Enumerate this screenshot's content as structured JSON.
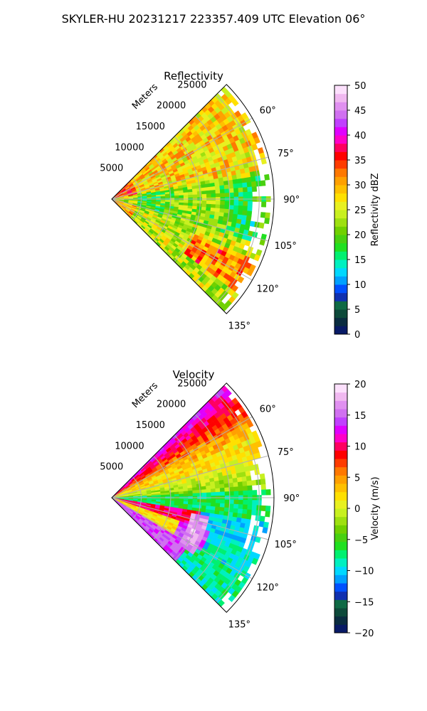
{
  "figure": {
    "suptitle": "SKYLER-HU  20231217  223357.409 UTC Elevation 06°"
  },
  "chart_data": [
    {
      "type": "heatmap",
      "projection": "polar-sector",
      "title": "Reflectivity",
      "range_label": "Meters",
      "range_ticks": [
        "5000",
        "10000",
        "15000",
        "20000",
        "25000"
      ],
      "azimuth_ticks": [
        "60°",
        "75°",
        "90°",
        "105°",
        "120°",
        "135°"
      ],
      "azimuth_range_deg": [
        45,
        135
      ],
      "range_max_m": 27500,
      "grid": true,
      "colorbar": {
        "label": "Reflectivity dBZ",
        "vmin": 0,
        "vmax": 50,
        "ticks": [
          "0",
          "5",
          "10",
          "15",
          "20",
          "25",
          "30",
          "35",
          "40",
          "45",
          "50"
        ],
        "colors": [
          "#081a66",
          "#0a2c40",
          "#0d4a3a",
          "#0f6a45",
          "#1030b0",
          "#0050ff",
          "#00a0ff",
          "#00d8ff",
          "#00f0c0",
          "#00f070",
          "#20e020",
          "#48d010",
          "#70d000",
          "#9ee010",
          "#c8f020",
          "#e8f020",
          "#ffe000",
          "#ffc000",
          "#ffa000",
          "#ff7800",
          "#ff3c00",
          "#ff0000",
          "#ff0060",
          "#ff00c8",
          "#e000ff",
          "#c040ff",
          "#d070f0",
          "#e090f0",
          "#f0b8f0",
          "#fce0fc"
        ]
      },
      "field_description_points": [
        {
          "az": 95,
          "r": 0.85,
          "level": 20
        },
        {
          "az": 65,
          "r": 0.8,
          "level": 28
        },
        {
          "az": 125,
          "r": 0.75,
          "level": 34
        },
        {
          "az": 115,
          "r": 0.9,
          "level": 32
        }
      ]
    },
    {
      "type": "heatmap",
      "projection": "polar-sector",
      "title": "Velocity",
      "range_label": "Meters",
      "range_ticks": [
        "5000",
        "10000",
        "15000",
        "20000",
        "25000"
      ],
      "azimuth_ticks": [
        "60°",
        "75°",
        "90°",
        "105°",
        "120°",
        "135°"
      ],
      "azimuth_range_deg": [
        45,
        135
      ],
      "range_max_m": 27500,
      "grid": true,
      "colorbar": {
        "label": "Velocity (m/s)",
        "vmin": -20,
        "vmax": 20,
        "ticks": [
          "−20",
          "−15",
          "−10",
          "−5",
          "0",
          "5",
          "10",
          "15",
          "20"
        ],
        "colors": [
          "#081a66",
          "#0a2c40",
          "#0d4a3a",
          "#0f6a45",
          "#1030b0",
          "#0050ff",
          "#00a0ff",
          "#00d8ff",
          "#00f0c0",
          "#00f070",
          "#20e020",
          "#48d010",
          "#70d000",
          "#9ee010",
          "#c8f020",
          "#e8f020",
          "#ffe000",
          "#ffc000",
          "#ffa000",
          "#ff7800",
          "#ff3c00",
          "#ff0000",
          "#ff0060",
          "#ff00c8",
          "#e000ff",
          "#c040ff",
          "#d070f0",
          "#e090f0",
          "#f0b8f0",
          "#fce0fc"
        ]
      }
    }
  ]
}
